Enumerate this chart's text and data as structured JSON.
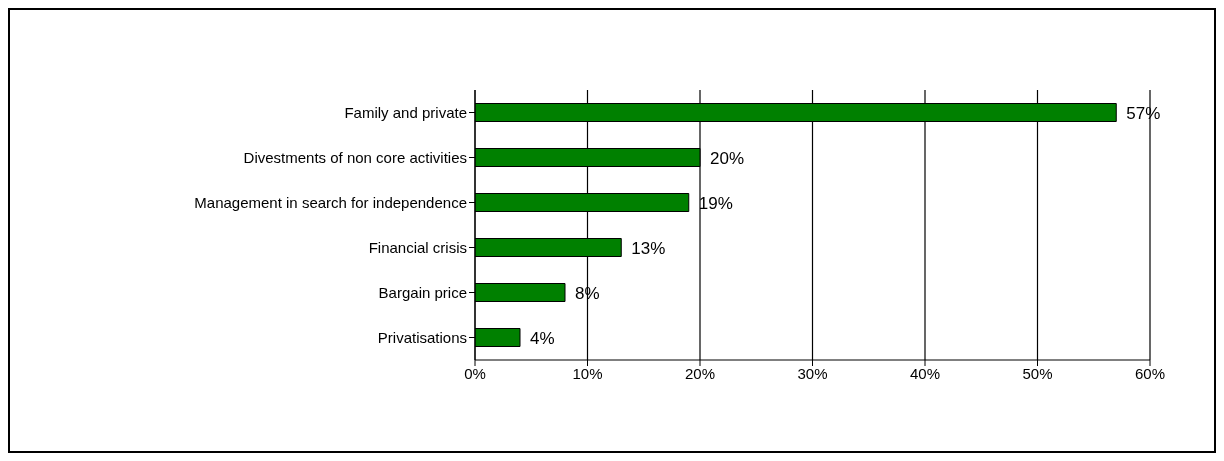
{
  "chart_data": {
    "type": "bar",
    "orientation": "horizontal",
    "categories": [
      "Family and private",
      "Divestments of non core activities",
      "Management in search for independence",
      "Financial crisis",
      "Bargain price",
      "Privatisations"
    ],
    "values": [
      57,
      20,
      19,
      13,
      8,
      4
    ],
    "value_labels": [
      "57%",
      "20%",
      "19%",
      "13%",
      "8%",
      "4%"
    ],
    "color": "#008000",
    "xlim": [
      0,
      60
    ],
    "xticks": [
      {
        "value": 0,
        "label": "0%"
      },
      {
        "value": 10,
        "label": "10%"
      },
      {
        "value": 20,
        "label": "20%"
      },
      {
        "value": 30,
        "label": "30%"
      },
      {
        "value": 40,
        "label": "40%"
      },
      {
        "value": 50,
        "label": "50%"
      },
      {
        "value": 60,
        "label": "60%"
      }
    ],
    "grid": "x",
    "legend": false
  }
}
